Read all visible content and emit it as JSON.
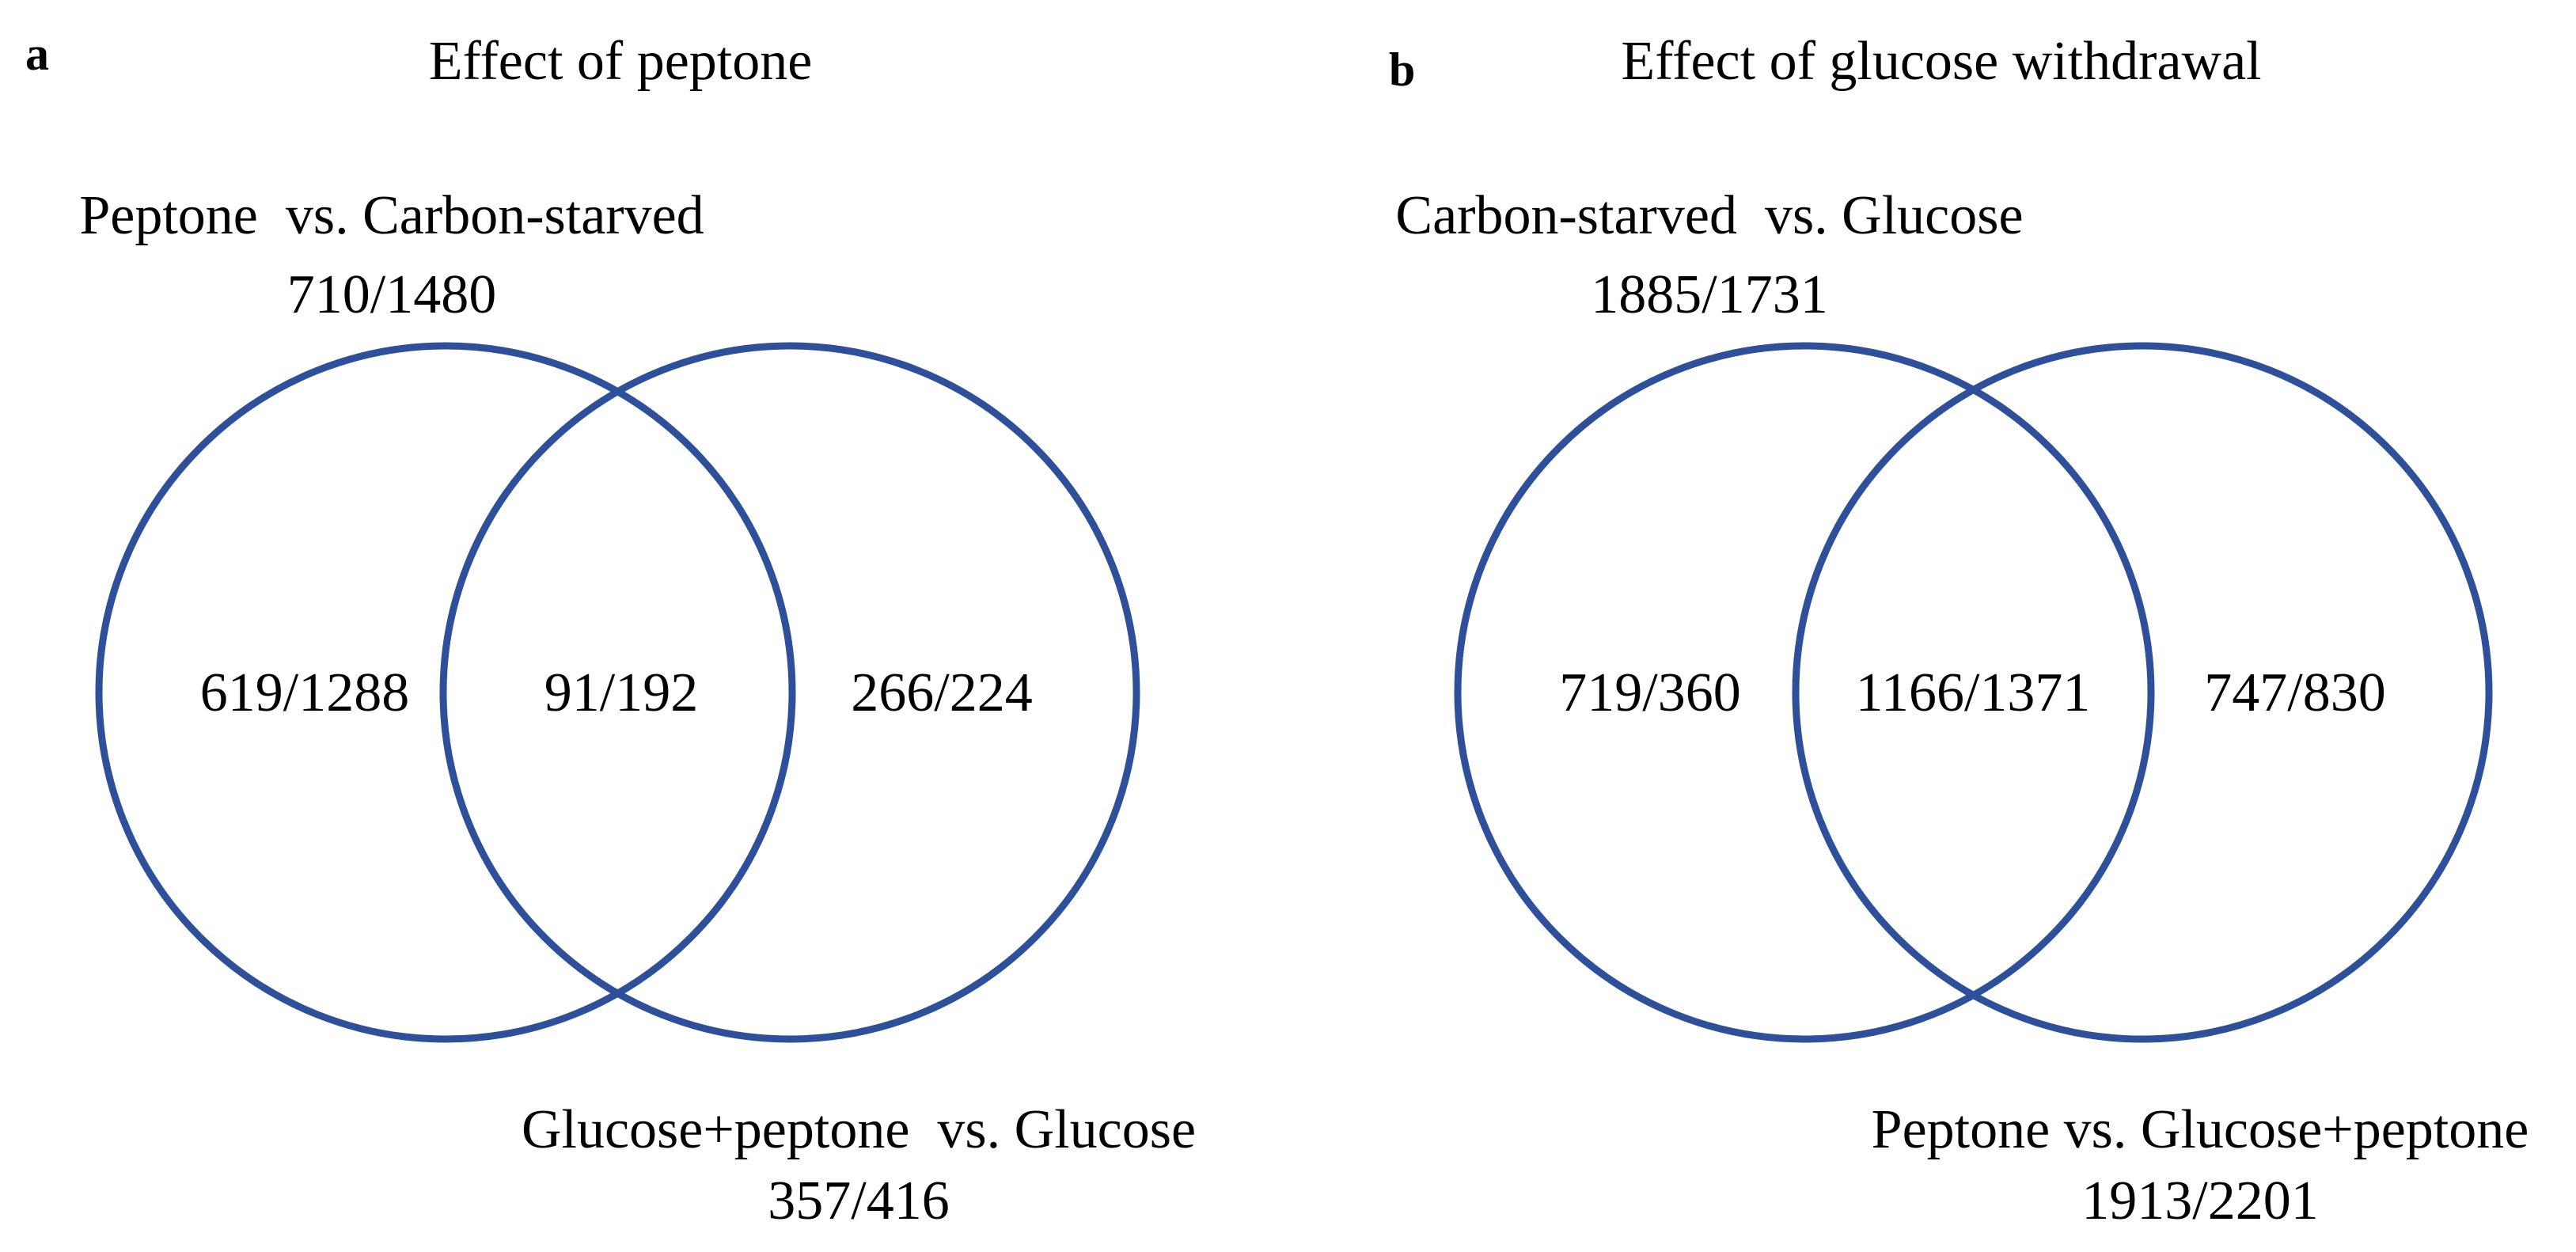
{
  "style": {
    "circle_color": "#2e4f9a",
    "text_color": "#000000"
  },
  "panel_a": {
    "letter": "a",
    "title": "Effect of peptone",
    "set_left": {
      "label": "Peptone  vs. Carbon-starved",
      "count": "710/1480"
    },
    "set_right": {
      "label": "Glucose+peptone  vs. Glucose",
      "count": "357/416"
    },
    "regions": {
      "left_only": "619/1288",
      "overlap": "91/192",
      "right_only": "266/224"
    }
  },
  "panel_b": {
    "letter": "b",
    "title": "Effect of glucose withdrawal",
    "set_left": {
      "label": "Carbon-starved  vs. Glucose",
      "count": "1885/1731"
    },
    "set_right": {
      "label": "Peptone vs. Glucose+peptone",
      "count": "1913/2201"
    },
    "regions": {
      "left_only": "719/360",
      "overlap": "1166/1371",
      "right_only": "747/830"
    }
  }
}
